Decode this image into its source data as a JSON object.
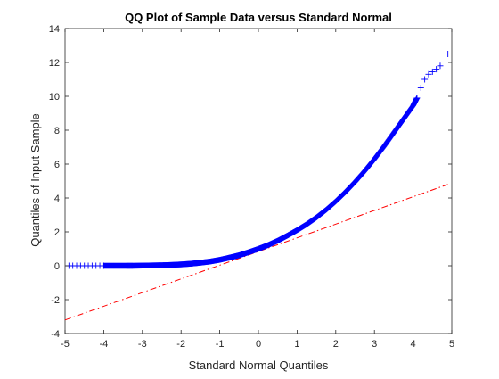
{
  "chart_data": {
    "type": "scatter",
    "title": "QQ Plot of Sample Data versus Standard Normal",
    "xlabel": "Standard Normal Quantiles",
    "ylabel": "Quantiles of Input Sample",
    "xlim": [
      -5,
      5
    ],
    "ylim": [
      -4,
      14
    ],
    "x_ticks": [
      "-5",
      "-4",
      "-3",
      "-2",
      "-1",
      "0",
      "1",
      "2",
      "3",
      "4",
      "5"
    ],
    "y_ticks": [
      "-4",
      "-2",
      "0",
      "2",
      "4",
      "6",
      "8",
      "10",
      "12",
      "14"
    ],
    "grid": false,
    "legend": false,
    "marker": "+",
    "series_color": "#0000ff",
    "reference_line": {
      "style": "dash-dot",
      "color": "#ff0000",
      "x": [
        -5,
        4.9
      ],
      "y": [
        -3.2,
        4.8
      ]
    },
    "series": [
      {
        "x": [
          -4.9,
          -4.8,
          -4.7,
          -4.6,
          -4.5,
          -4.4,
          -4.3,
          -4.2,
          -4.1,
          -4.0,
          -3.75,
          -3.5,
          -3.25,
          -3.0,
          -2.75,
          -2.5,
          -2.25,
          -2.0,
          -1.75,
          -1.5,
          -1.25,
          -1.0,
          -0.75,
          -0.5,
          -0.25,
          0.0,
          0.25,
          0.5,
          0.75,
          1.0,
          1.25,
          1.5,
          1.75,
          2.0,
          2.25,
          2.5,
          2.75,
          3.0,
          3.25,
          3.5,
          3.75,
          4.0,
          4.1,
          4.2,
          4.3,
          4.4,
          4.5,
          4.6,
          4.7,
          4.9
        ],
        "y": [
          0.0,
          0.0,
          0.0,
          0.0,
          0.0,
          0.0,
          0.0,
          0.0,
          0.0,
          0.0,
          0.0,
          0.0,
          0.0,
          0.01,
          0.02,
          0.03,
          0.05,
          0.08,
          0.12,
          0.18,
          0.25,
          0.35,
          0.48,
          0.62,
          0.8,
          1.0,
          1.22,
          1.48,
          1.78,
          2.1,
          2.45,
          2.85,
          3.3,
          3.8,
          4.35,
          4.95,
          5.6,
          6.3,
          7.05,
          7.85,
          8.65,
          9.45,
          9.9,
          10.5,
          11.0,
          11.3,
          11.45,
          11.6,
          11.8,
          12.5
        ]
      }
    ]
  }
}
